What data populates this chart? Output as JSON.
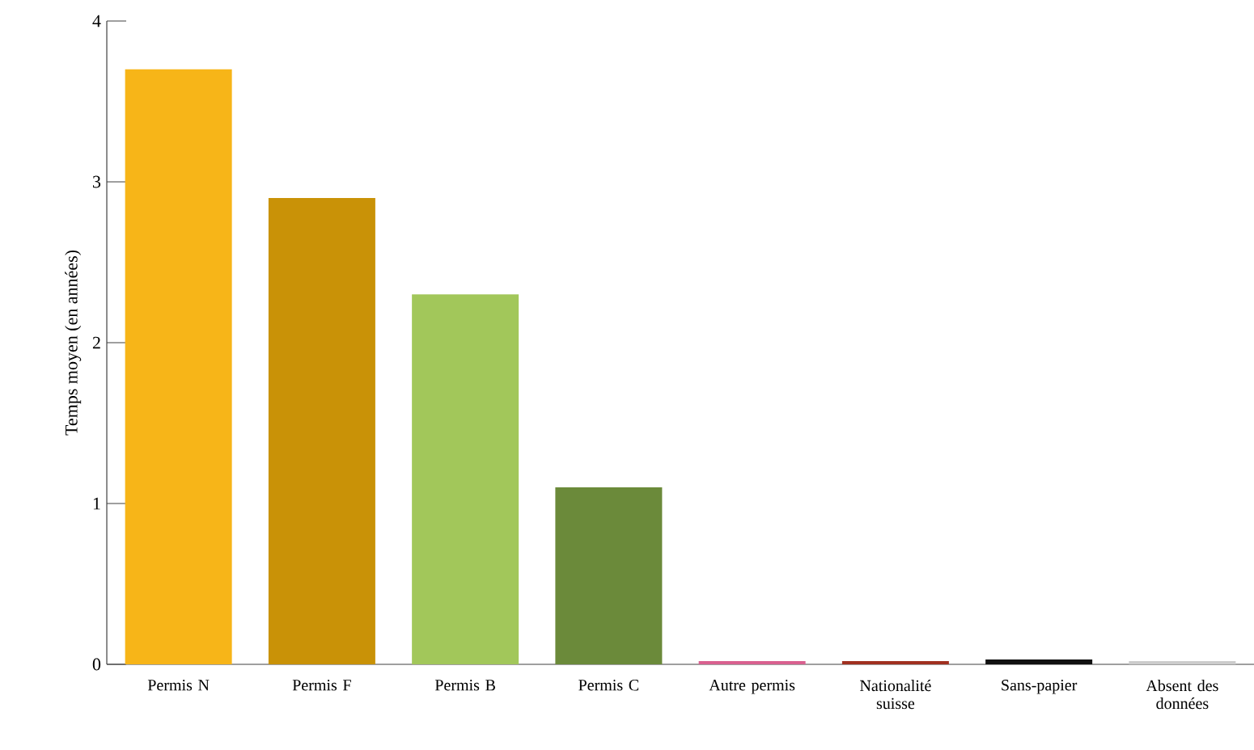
{
  "chart_data": {
    "type": "bar",
    "ylabel": "Temps moyen (en années)",
    "categories": [
      "Permis N",
      "Permis F",
      "Permis B",
      "Permis C",
      "Autre permis",
      "Nationalité suisse",
      "Sans-papier",
      "Absent des données"
    ],
    "values": [
      3.7,
      2.9,
      2.3,
      1.1,
      0.02,
      0.02,
      0.03,
      0.02
    ],
    "colors": [
      "#f7b518",
      "#c99207",
      "#a2c75a",
      "#6b8a3a",
      "#d9608f",
      "#a03020",
      "#111111",
      "#cccccc"
    ],
    "ylim": [
      0,
      4
    ],
    "yticks": [
      0,
      1,
      2,
      3,
      4
    ]
  }
}
